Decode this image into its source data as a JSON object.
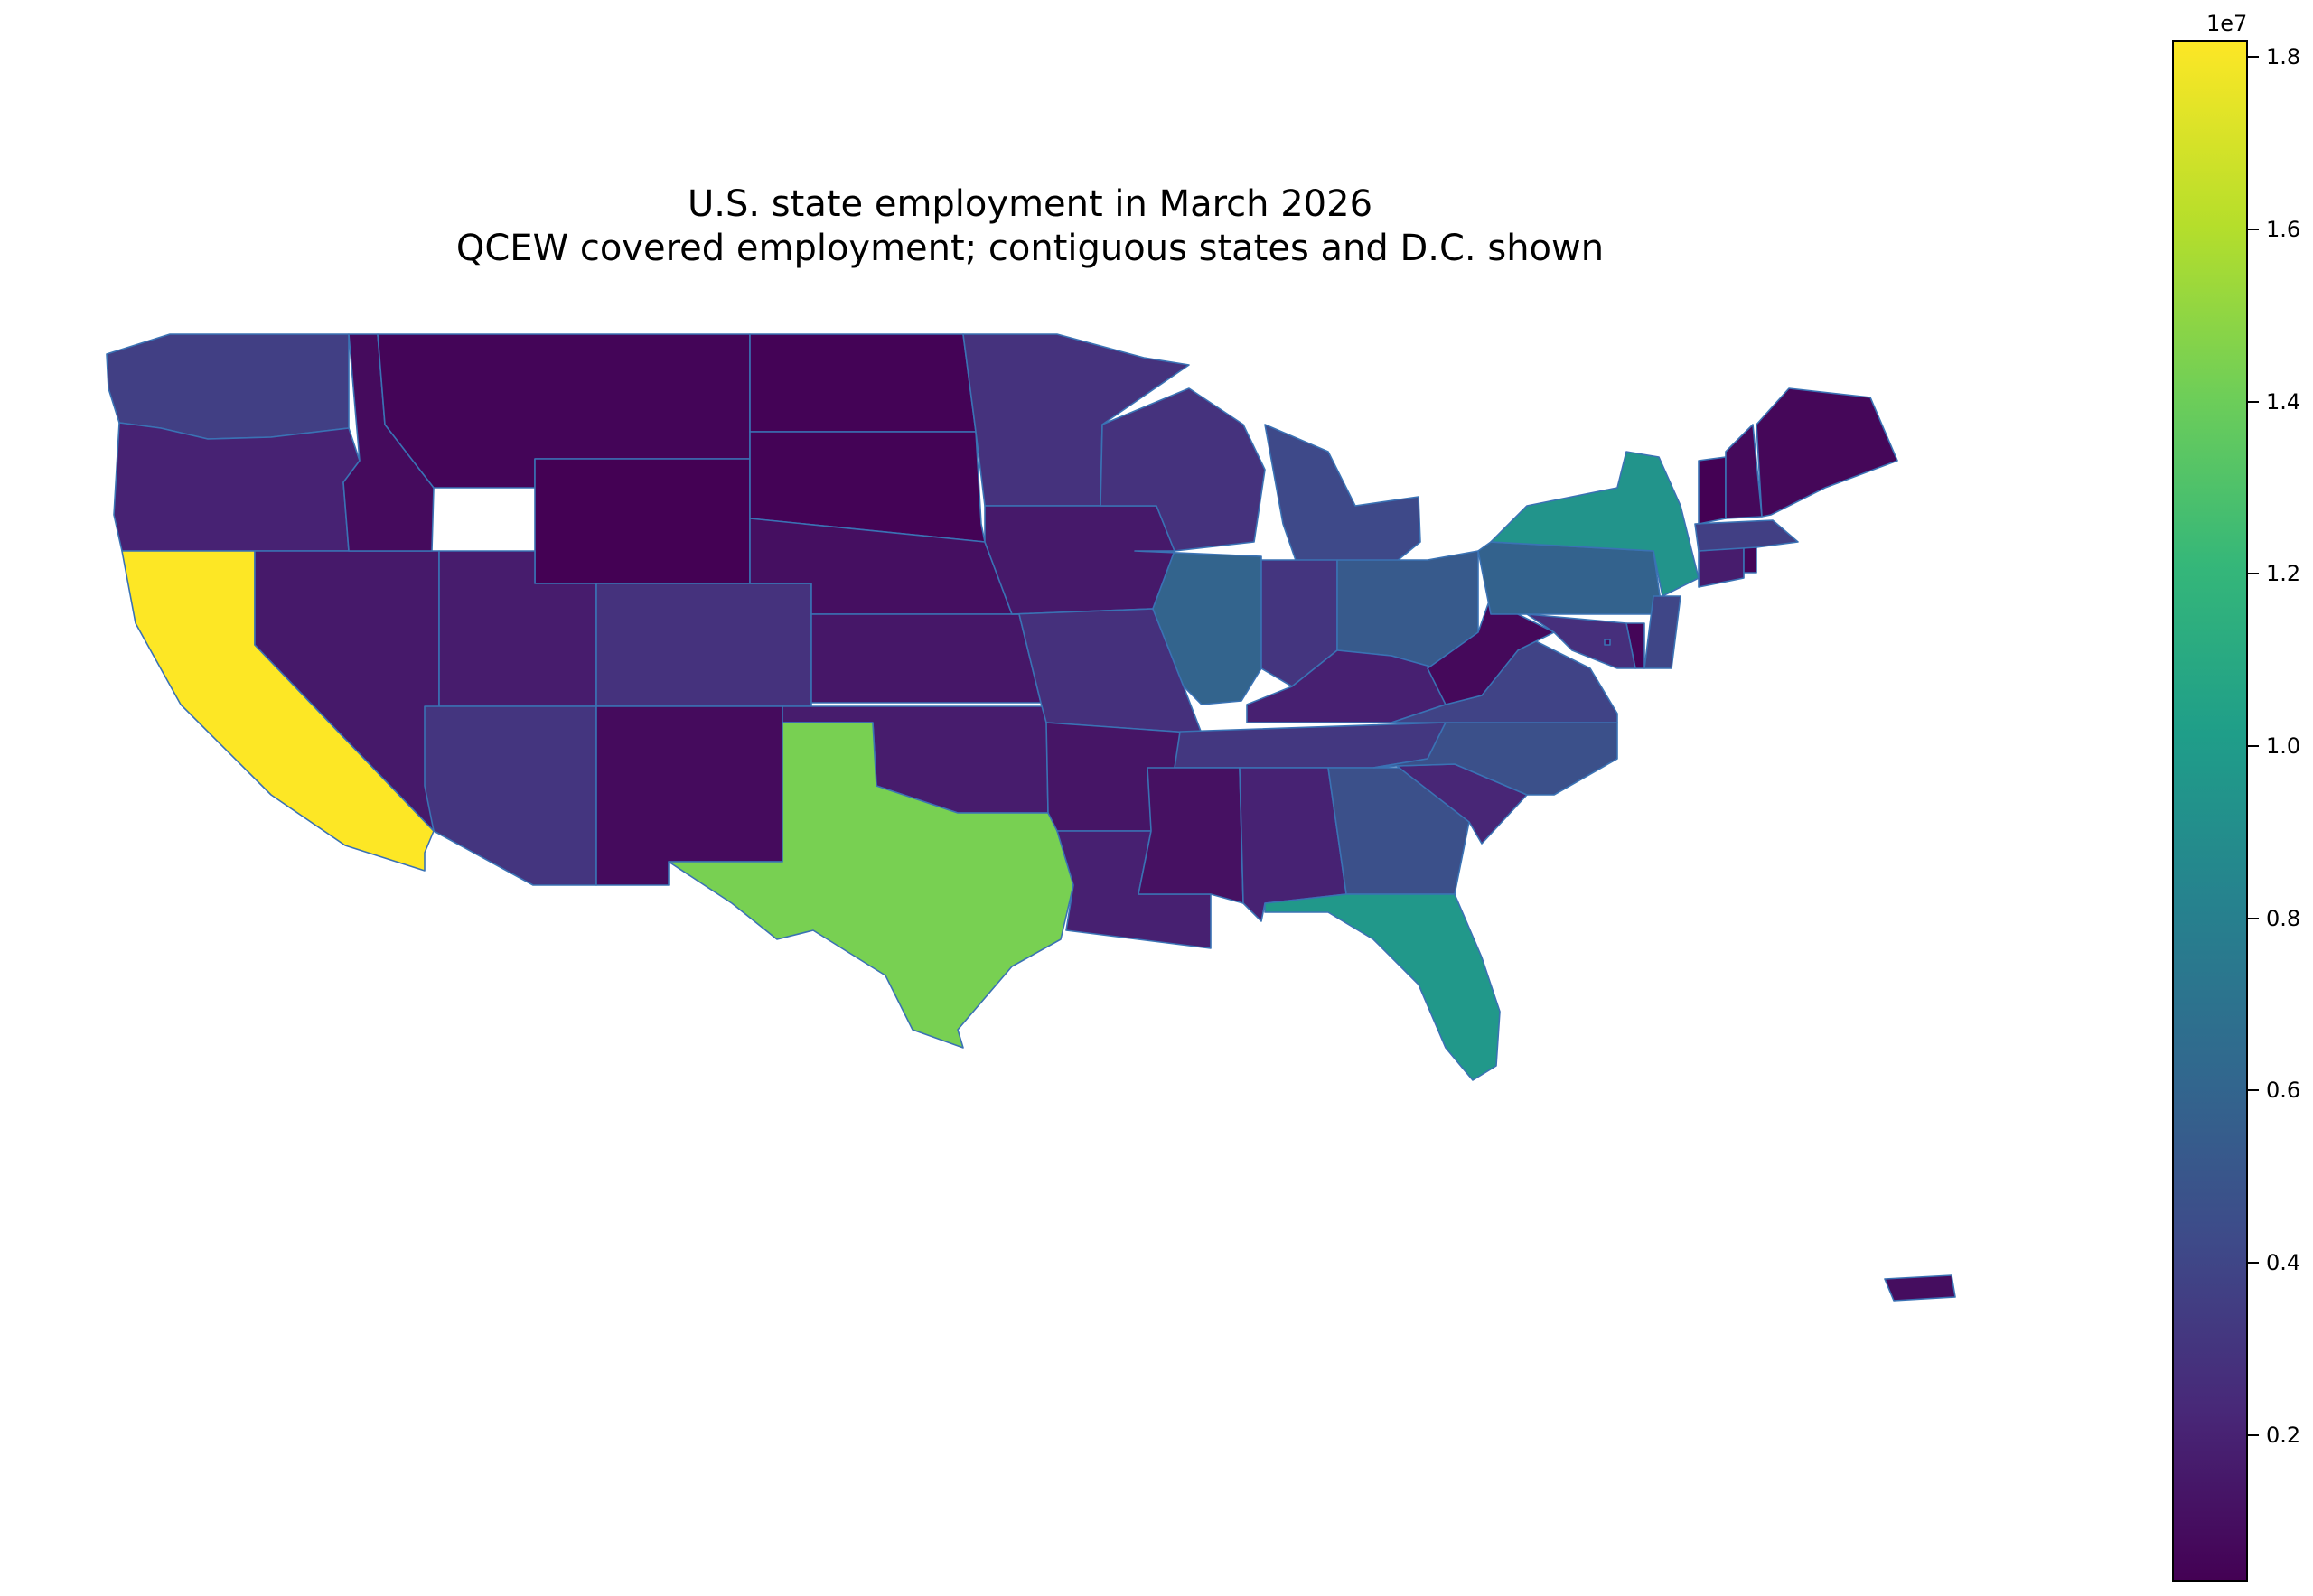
{
  "title": "U.S. state employment in March 2026",
  "subtitle": "QCEW covered employment; contiguous states and D.C. shown",
  "colorbar": {
    "exponent_label": "1e7",
    "ticks": [
      "0.2",
      "0.4",
      "0.6",
      "0.8",
      "1.0",
      "1.2",
      "1.4",
      "1.6",
      "1.8"
    ],
    "tick_values": [
      0.2,
      0.4,
      0.6,
      0.8,
      1.0,
      1.2,
      1.4,
      1.6,
      1.8
    ],
    "range": [
      0.03,
      1.82
    ],
    "colormap": "viridis"
  },
  "chart_data": {
    "type": "choropleth",
    "units_scale": "1e7",
    "values": {
      "WA": 0.37,
      "OR": 0.2,
      "CA": 1.82,
      "NV": 0.15,
      "ID": 0.08,
      "MT": 0.05,
      "WY": 0.03,
      "UT": 0.17,
      "CO": 0.29,
      "AZ": 0.31,
      "NM": 0.08,
      "ND": 0.04,
      "SD": 0.04,
      "NE": 0.1,
      "KS": 0.14,
      "OK": 0.17,
      "TX": 1.45,
      "MN": 0.29,
      "IA": 0.15,
      "MO": 0.28,
      "AR": 0.13,
      "LA": 0.19,
      "WI": 0.29,
      "IL": 0.6,
      "MI": 0.43,
      "IN": 0.31,
      "OH": 0.54,
      "KY": 0.19,
      "TN": 0.32,
      "MS": 0.11,
      "AL": 0.2,
      "GA": 0.47,
      "FL": 0.98,
      "SC": 0.22,
      "NC": 0.47,
      "VA": 0.39,
      "WV": 0.07,
      "PA": 0.59,
      "NY": 0.95,
      "NJ": 0.41,
      "DE": 0.05,
      "MD": 0.27,
      "DC": 0.08,
      "CT": 0.17,
      "RI": 0.05,
      "MA": 0.37,
      "VT": 0.03,
      "NH": 0.07,
      "ME": 0.06,
      "PR": 0.09
    }
  }
}
